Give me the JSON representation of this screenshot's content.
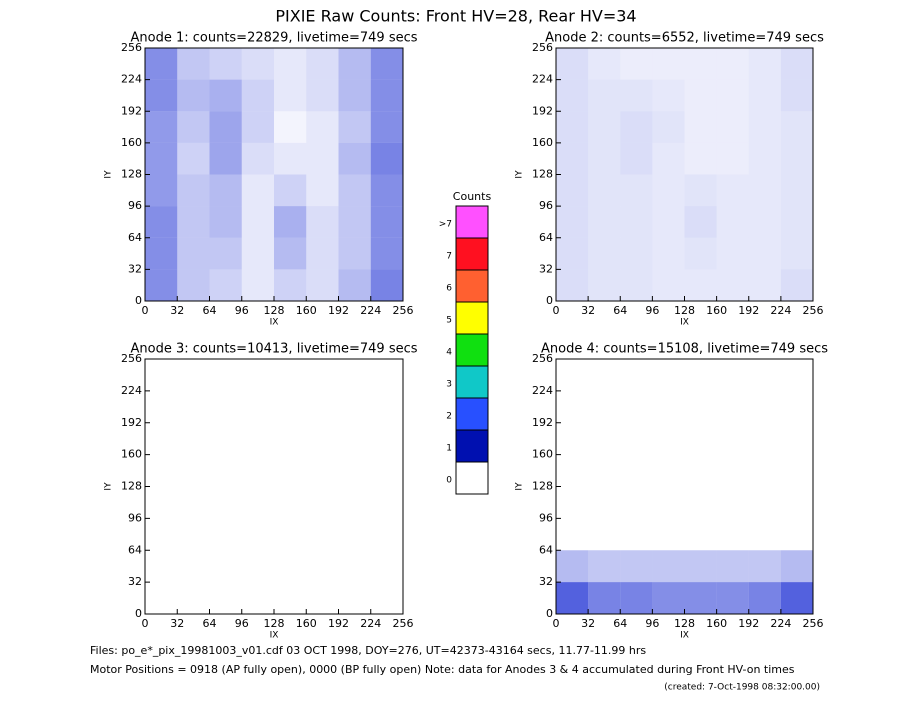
{
  "title": "PIXIE Raw Counts:  Front HV=28, Rear HV=34",
  "chart_data": [
    {
      "type": "heatmap",
      "title": "Anode 1: counts=22829, livetime=749 secs",
      "xlabel": "IX",
      "ylabel": "IY",
      "xlim": [
        0,
        256
      ],
      "ylim": [
        0,
        256
      ],
      "xticks": [
        0,
        32,
        64,
        96,
        128,
        160,
        192,
        224,
        256
      ],
      "yticks": [
        0,
        32,
        64,
        96,
        128,
        160,
        192,
        224,
        256
      ],
      "density": [
        [
          0.5,
          0.25,
          0.2,
          0.15,
          0.1,
          0.15,
          0.3,
          0.5
        ],
        [
          0.5,
          0.3,
          0.35,
          0.2,
          0.1,
          0.15,
          0.3,
          0.5
        ],
        [
          0.45,
          0.25,
          0.4,
          0.2,
          0.05,
          0.1,
          0.25,
          0.5
        ],
        [
          0.45,
          0.2,
          0.4,
          0.15,
          0.1,
          0.1,
          0.3,
          0.55
        ],
        [
          0.45,
          0.25,
          0.3,
          0.1,
          0.2,
          0.1,
          0.25,
          0.5
        ],
        [
          0.5,
          0.25,
          0.3,
          0.1,
          0.35,
          0.15,
          0.25,
          0.5
        ],
        [
          0.5,
          0.25,
          0.25,
          0.1,
          0.3,
          0.15,
          0.25,
          0.5
        ],
        [
          0.5,
          0.25,
          0.2,
          0.1,
          0.2,
          0.15,
          0.3,
          0.55
        ]
      ]
    },
    {
      "type": "heatmap",
      "title": "Anode 2: counts=6552, livetime=749 secs",
      "xlabel": "IX",
      "ylabel": "IY",
      "xlim": [
        0,
        256
      ],
      "ylim": [
        0,
        256
      ],
      "xticks": [
        0,
        32,
        64,
        96,
        128,
        160,
        192,
        224,
        256
      ],
      "yticks": [
        0,
        32,
        64,
        96,
        128,
        160,
        192,
        224,
        256
      ],
      "density": [
        [
          0.15,
          0.1,
          0.08,
          0.08,
          0.08,
          0.08,
          0.1,
          0.15
        ],
        [
          0.15,
          0.12,
          0.12,
          0.1,
          0.08,
          0.08,
          0.1,
          0.15
        ],
        [
          0.15,
          0.12,
          0.15,
          0.12,
          0.08,
          0.08,
          0.1,
          0.12
        ],
        [
          0.15,
          0.12,
          0.15,
          0.1,
          0.08,
          0.08,
          0.1,
          0.12
        ],
        [
          0.15,
          0.12,
          0.12,
          0.1,
          0.12,
          0.1,
          0.1,
          0.12
        ],
        [
          0.15,
          0.12,
          0.12,
          0.1,
          0.15,
          0.1,
          0.1,
          0.12
        ],
        [
          0.15,
          0.12,
          0.12,
          0.1,
          0.12,
          0.1,
          0.1,
          0.12
        ],
        [
          0.15,
          0.12,
          0.12,
          0.1,
          0.1,
          0.1,
          0.1,
          0.15
        ]
      ]
    },
    {
      "type": "heatmap",
      "title": "Anode 3: counts=10413, livetime=749 secs",
      "xlabel": "IX",
      "ylabel": "IY",
      "xlim": [
        0,
        256
      ],
      "ylim": [
        0,
        256
      ],
      "xticks": [
        0,
        32,
        64,
        96,
        128,
        160,
        192,
        224,
        256
      ],
      "yticks": [
        0,
        32,
        64,
        96,
        128,
        160,
        192,
        224,
        256
      ],
      "density": [
        [
          0,
          0,
          0,
          0,
          0,
          0,
          0,
          0
        ],
        [
          0,
          0,
          0,
          0,
          0,
          0,
          0,
          0
        ],
        [
          0,
          0,
          0,
          0,
          0,
          0,
          0,
          0
        ],
        [
          0,
          0,
          0,
          0,
          0,
          0,
          0,
          0
        ],
        [
          0,
          0,
          0,
          0,
          0,
          0,
          0,
          0
        ],
        [
          0,
          0,
          0,
          0,
          0,
          0,
          0,
          0
        ],
        [
          0,
          0,
          0,
          0,
          0,
          0,
          0,
          0
        ],
        [
          0,
          0,
          0,
          0,
          0,
          0,
          0,
          0
        ]
      ]
    },
    {
      "type": "heatmap",
      "title": "Anode 4: counts=15108, livetime=749 secs",
      "xlabel": "IX",
      "ylabel": "IY",
      "xlim": [
        0,
        256
      ],
      "ylim": [
        0,
        256
      ],
      "xticks": [
        0,
        32,
        64,
        96,
        128,
        160,
        192,
        224,
        256
      ],
      "yticks": [
        0,
        32,
        64,
        96,
        128,
        160,
        192,
        224,
        256
      ],
      "density": [
        [
          0,
          0,
          0,
          0,
          0,
          0,
          0,
          0
        ],
        [
          0,
          0,
          0,
          0,
          0,
          0,
          0,
          0
        ],
        [
          0,
          0,
          0,
          0,
          0,
          0,
          0,
          0
        ],
        [
          0,
          0,
          0,
          0,
          0,
          0,
          0,
          0
        ],
        [
          0,
          0,
          0,
          0,
          0,
          0,
          0,
          0
        ],
        [
          0,
          0,
          0,
          0,
          0,
          0,
          0,
          0
        ],
        [
          0.3,
          0.25,
          0.25,
          0.25,
          0.25,
          0.25,
          0.25,
          0.3
        ],
        [
          0.7,
          0.55,
          0.55,
          0.5,
          0.5,
          0.5,
          0.55,
          0.7
        ]
      ]
    }
  ],
  "colorbar": {
    "title": "Counts",
    "labels": [
      "0",
      "1",
      "2",
      "3",
      "4",
      "5",
      "6",
      "7",
      ">7"
    ],
    "colors": [
      "#ffffff",
      "#0010b0",
      "#2850ff",
      "#10c8c8",
      "#10e010",
      "#ffff00",
      "#ff6030",
      "#ff1020",
      "#ff50ff"
    ]
  },
  "footer": [
    "Files: po_e*_pix_19981003_v01.cdf    03 OCT 1998, DOY=276, UT=42373-43164 secs, 11.77-11.99 hrs",
    "Motor Positions = 0918 (AP fully open), 0000 (BP fully open)    Note: data for Anodes 3 & 4 accumulated during Front HV-on times",
    "(created:  7-Oct-1998 08:32:00.00)"
  ]
}
